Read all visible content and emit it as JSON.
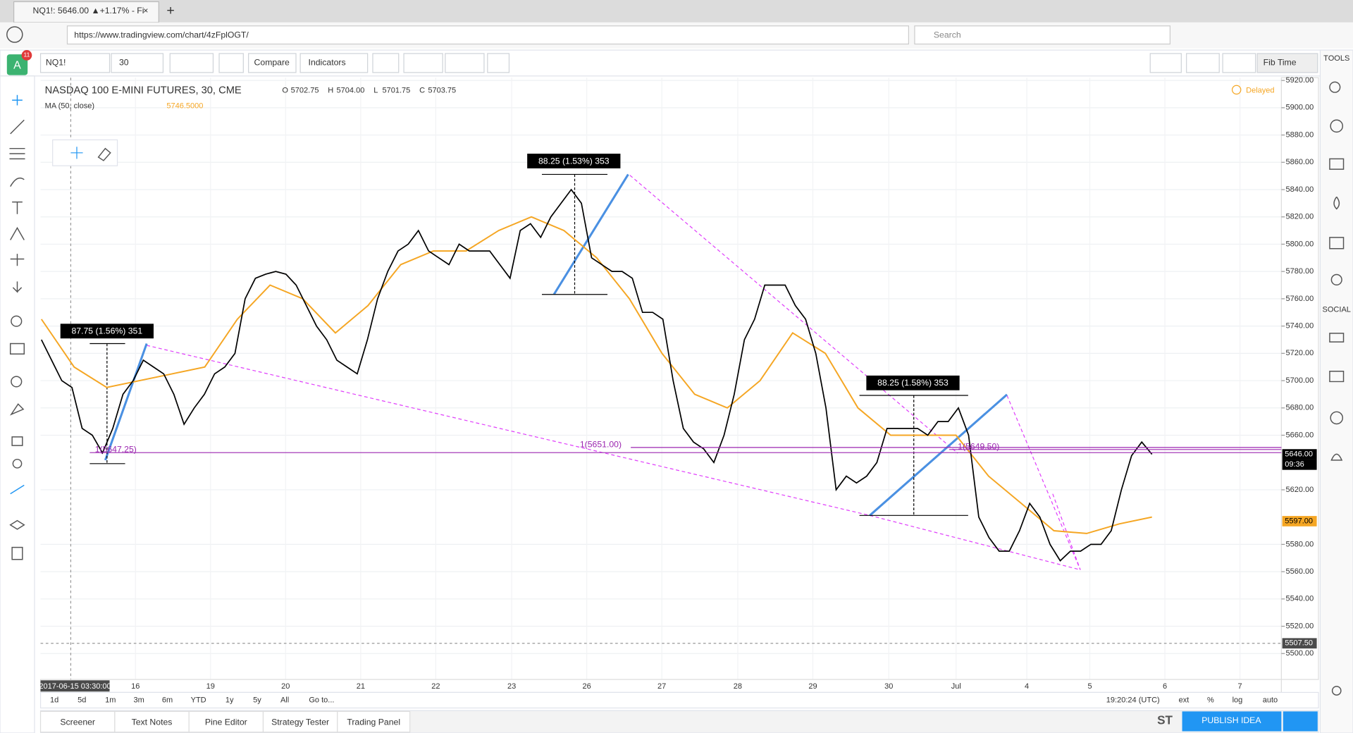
{
  "browser": {
    "tab_title": "NQ1!: 5646.00 ▲+1.17% - Fi",
    "url": "https://www.tradingview.com/chart/4zFplOGT/",
    "search": "Search"
  },
  "toolbar": {
    "badge": "11",
    "avatar": "A",
    "symbol": "NQ1!",
    "interval": "30",
    "compare": "Compare",
    "indicators": "Indicators",
    "fib_time": "Fib Time"
  },
  "sidebar": {
    "tools": "TOOLS",
    "social": "SOCIAL"
  },
  "legend": {
    "title": "NASDAQ 100 E-MINI FUTURES, 30, CME",
    "ohlc": [
      {
        "key": "O",
        "value": "5702.75"
      },
      {
        "key": "H",
        "value": "5704.00"
      },
      {
        "key": "L",
        "value": "5701.75"
      },
      {
        "key": "C",
        "value": "5703.75"
      }
    ],
    "ma_label": "MA (50, close)",
    "ma_value": "5746.5000",
    "delayed": "Delayed"
  },
  "price_axis": {
    "ylim": [
      5481,
      5922
    ],
    "ticks": [
      {
        "value": 5920,
        "label": "5920.00"
      },
      {
        "value": 5900,
        "label": "5900.00"
      },
      {
        "value": 5880,
        "label": "5880.00"
      },
      {
        "value": 5860,
        "label": "5860.00"
      },
      {
        "value": 5840,
        "label": "5840.00"
      },
      {
        "value": 5820,
        "label": "5820.00"
      },
      {
        "value": 5800,
        "label": "5800.00"
      },
      {
        "value": 5780,
        "label": "5780.00"
      },
      {
        "value": 5760,
        "label": "5760.00"
      },
      {
        "value": 5740,
        "label": "5740.00"
      },
      {
        "value": 5720,
        "label": "5720.00"
      },
      {
        "value": 5700,
        "label": "5700.00"
      },
      {
        "value": 5680,
        "label": "5680.00"
      },
      {
        "value": 5660,
        "label": "5660.00"
      },
      {
        "value": 5620,
        "label": "5620.00"
      },
      {
        "value": 5580,
        "label": "5580.00"
      },
      {
        "value": 5560,
        "label": "5560.00"
      },
      {
        "value": 5540,
        "label": "5540.00"
      },
      {
        "value": 5520,
        "label": "5520.00"
      },
      {
        "value": 5500,
        "label": "5500.00"
      }
    ],
    "last_price": {
      "value": 5646,
      "label": "5646.00"
    },
    "countdown": "09:36",
    "ma_last": {
      "value": 5597,
      "label": "5597.00"
    },
    "crosshair": {
      "value": 5507.5,
      "label": "5507.50"
    }
  },
  "price_series": {
    "color": "#000000",
    "closes": [
      5730,
      5715,
      5700,
      5695,
      5665,
      5660,
      5647,
      5665,
      5690,
      5700,
      5715,
      5710,
      5705,
      5690,
      5668,
      5680,
      5690,
      5705,
      5710,
      5720,
      5760,
      5775,
      5778,
      5780,
      5778,
      5770,
      5755,
      5740,
      5730,
      5715,
      5710,
      5705,
      5730,
      5760,
      5780,
      5795,
      5800,
      5810,
      5795,
      5790,
      5785,
      5800,
      5795,
      5795,
      5795,
      5785,
      5775,
      5810,
      5815,
      5805,
      5820,
      5830,
      5840,
      5830,
      5790,
      5785,
      5780,
      5780,
      5775,
      5750,
      5750,
      5745,
      5700,
      5665,
      5655,
      5650,
      5640,
      5660,
      5690,
      5730,
      5745,
      5770,
      5770,
      5770,
      5755,
      5745,
      5720,
      5680,
      5620,
      5630,
      5625,
      5630,
      5640,
      5665,
      5665,
      5665,
      5665,
      5660,
      5670,
      5670,
      5680,
      5660,
      5600,
      5585,
      5575,
      5575,
      5590,
      5610,
      5600,
      5580,
      5568,
      5575,
      5575,
      5580,
      5580,
      5590,
      5620,
      5645,
      5655,
      5646
    ]
  },
  "ma": {
    "color": "#f5a623",
    "values": [
      5745,
      5710,
      5695,
      5700,
      5705,
      5710,
      5745,
      5770,
      5760,
      5735,
      5755,
      5785,
      5795,
      5795,
      5810,
      5820,
      5810,
      5790,
      5760,
      5720,
      5690,
      5680,
      5700,
      5735,
      5720,
      5680,
      5660,
      5660,
      5660,
      5630,
      5610,
      5590,
      5588,
      5595,
      5600
    ]
  },
  "measures": [
    "87.75 (1.56%) 351",
    "88.25 (1.53%) 353",
    "88.25 (1.58%) 353"
  ],
  "levels": [
    {
      "label": "1(5647.25)",
      "value": 5647.25
    },
    {
      "label": "1(5651.00)",
      "value": 5651
    },
    {
      "label": "1(5649.50)",
      "value": 5649.5
    }
  ],
  "time_axis": {
    "start": "2017-06-15 03:30:00",
    "labels": [
      "16",
      "19",
      "20",
      "21",
      "22",
      "23",
      "26",
      "27",
      "28",
      "29",
      "30",
      "Jul",
      "4",
      "5",
      "6",
      "7"
    ]
  },
  "range_bar": {
    "buttons": [
      "1d",
      "5d",
      "1m",
      "3m",
      "6m",
      "YTD",
      "1y",
      "5y",
      "All"
    ],
    "goto": "Go to...",
    "clock": "19:20:24 (UTC)",
    "options": [
      "ext",
      "%",
      "log",
      "auto"
    ]
  },
  "bottom": {
    "tabs": [
      "Screener",
      "Text Notes",
      "Pine Editor",
      "Strategy Tester",
      "Trading Panel"
    ],
    "st": "ST",
    "publish": "PUBLISH IDEA"
  }
}
